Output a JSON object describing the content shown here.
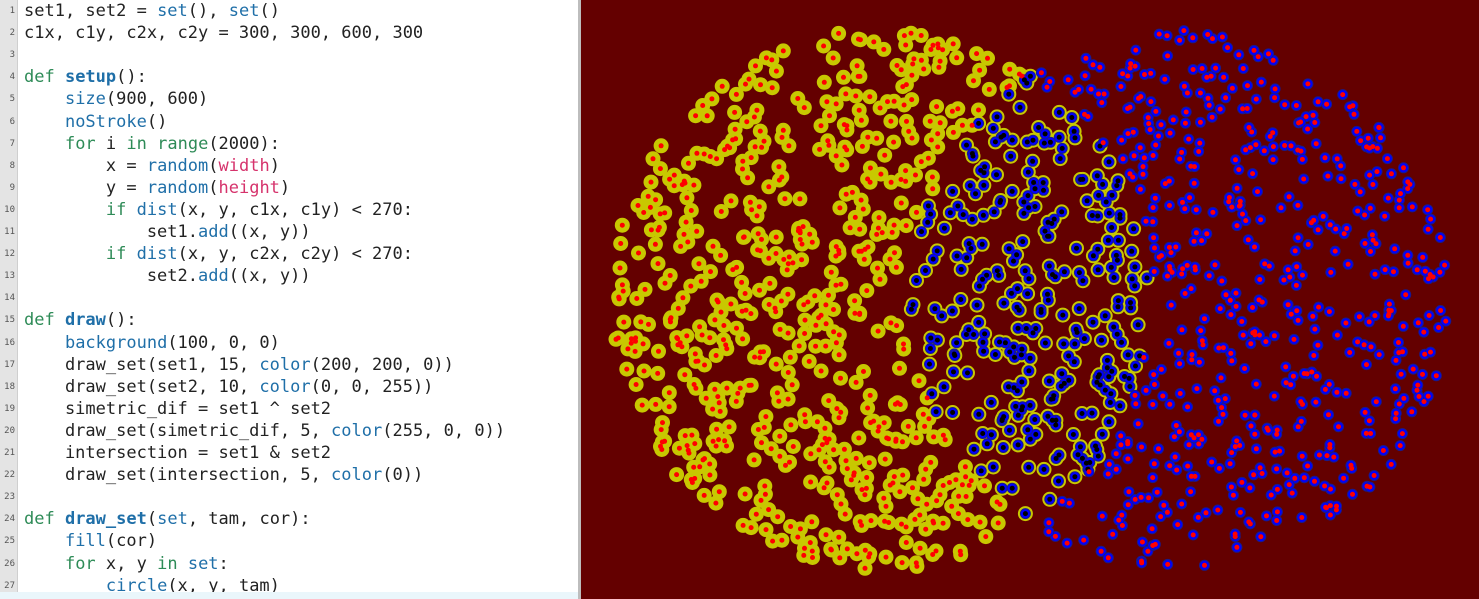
{
  "editor": {
    "lines": [
      {
        "num": "1",
        "tokens": [
          {
            "t": "set1, set2 = "
          },
          {
            "t": "set",
            "c": "fn"
          },
          {
            "t": "(), "
          },
          {
            "t": "set",
            "c": "fn"
          },
          {
            "t": "()"
          }
        ]
      },
      {
        "num": "2",
        "tokens": [
          {
            "t": "c1x, c1y, c2x, c2y = 300, 300, 600, 300"
          }
        ]
      },
      {
        "num": "3",
        "tokens": []
      },
      {
        "num": "4",
        "tokens": [
          {
            "t": "def ",
            "c": "kw"
          },
          {
            "t": "setup",
            "c": "def"
          },
          {
            "t": "():"
          }
        ]
      },
      {
        "num": "5",
        "tokens": [
          {
            "t": "    "
          },
          {
            "t": "size",
            "c": "fn"
          },
          {
            "t": "(900, 600)"
          }
        ]
      },
      {
        "num": "6",
        "tokens": [
          {
            "t": "    "
          },
          {
            "t": "noStroke",
            "c": "fn"
          },
          {
            "t": "()"
          }
        ]
      },
      {
        "num": "7",
        "tokens": [
          {
            "t": "    "
          },
          {
            "t": "for",
            "c": "kw"
          },
          {
            "t": " i "
          },
          {
            "t": "in",
            "c": "kw"
          },
          {
            "t": " "
          },
          {
            "t": "range",
            "c": "kw"
          },
          {
            "t": "(2000):"
          }
        ]
      },
      {
        "num": "8",
        "tokens": [
          {
            "t": "        x = "
          },
          {
            "t": "random",
            "c": "fn"
          },
          {
            "t": "("
          },
          {
            "t": "width",
            "c": "var"
          },
          {
            "t": ")"
          }
        ]
      },
      {
        "num": "9",
        "tokens": [
          {
            "t": "        y = "
          },
          {
            "t": "random",
            "c": "fn"
          },
          {
            "t": "("
          },
          {
            "t": "height",
            "c": "var"
          },
          {
            "t": ")"
          }
        ]
      },
      {
        "num": "10",
        "tokens": [
          {
            "t": "        "
          },
          {
            "t": "if",
            "c": "kw"
          },
          {
            "t": " "
          },
          {
            "t": "dist",
            "c": "fn"
          },
          {
            "t": "(x, y, c1x, c1y) < 270:"
          }
        ]
      },
      {
        "num": "11",
        "tokens": [
          {
            "t": "            set1."
          },
          {
            "t": "add",
            "c": "fn"
          },
          {
            "t": "((x, y))"
          }
        ]
      },
      {
        "num": "12",
        "tokens": [
          {
            "t": "        "
          },
          {
            "t": "if",
            "c": "kw"
          },
          {
            "t": " "
          },
          {
            "t": "dist",
            "c": "fn"
          },
          {
            "t": "(x, y, c2x, c2y) < 270:"
          }
        ]
      },
      {
        "num": "13",
        "tokens": [
          {
            "t": "            set2."
          },
          {
            "t": "add",
            "c": "fn"
          },
          {
            "t": "((x, y))"
          }
        ]
      },
      {
        "num": "14",
        "tokens": []
      },
      {
        "num": "15",
        "tokens": [
          {
            "t": "def ",
            "c": "kw"
          },
          {
            "t": "draw",
            "c": "def"
          },
          {
            "t": "():"
          }
        ]
      },
      {
        "num": "16",
        "tokens": [
          {
            "t": "    "
          },
          {
            "t": "background",
            "c": "fn"
          },
          {
            "t": "(100, 0, 0)"
          }
        ]
      },
      {
        "num": "17",
        "tokens": [
          {
            "t": "    draw_set(set1, 15, "
          },
          {
            "t": "color",
            "c": "fn"
          },
          {
            "t": "(200, 200, 0))"
          }
        ]
      },
      {
        "num": "18",
        "tokens": [
          {
            "t": "    draw_set(set2, 10, "
          },
          {
            "t": "color",
            "c": "fn"
          },
          {
            "t": "(0, 0, 255))"
          }
        ]
      },
      {
        "num": "19",
        "tokens": [
          {
            "t": "    simetric_dif = set1 ^ set2"
          }
        ]
      },
      {
        "num": "20",
        "tokens": [
          {
            "t": "    draw_set(simetric_dif, 5, "
          },
          {
            "t": "color",
            "c": "fn"
          },
          {
            "t": "(255, 0, 0))"
          }
        ]
      },
      {
        "num": "21",
        "tokens": [
          {
            "t": "    intersection = set1 & set2"
          }
        ]
      },
      {
        "num": "22",
        "tokens": [
          {
            "t": "    draw_set(intersection, 5, "
          },
          {
            "t": "color",
            "c": "fn"
          },
          {
            "t": "(0))"
          }
        ]
      },
      {
        "num": "23",
        "tokens": []
      },
      {
        "num": "24",
        "tokens": [
          {
            "t": "def ",
            "c": "kw"
          },
          {
            "t": "draw_set",
            "c": "def"
          },
          {
            "t": "("
          },
          {
            "t": "set",
            "c": "fn"
          },
          {
            "t": ", tam, cor):"
          }
        ]
      },
      {
        "num": "25",
        "tokens": [
          {
            "t": "    "
          },
          {
            "t": "fill",
            "c": "fn"
          },
          {
            "t": "(cor)"
          }
        ]
      },
      {
        "num": "26",
        "tokens": [
          {
            "t": "    "
          },
          {
            "t": "for",
            "c": "kw"
          },
          {
            "t": " x, y "
          },
          {
            "t": "in",
            "c": "kw"
          },
          {
            "t": " "
          },
          {
            "t": "set",
            "c": "fn"
          },
          {
            "t": ":"
          }
        ]
      },
      {
        "num": "27",
        "tokens": [
          {
            "t": "        "
          },
          {
            "t": "circle",
            "c": "fn"
          },
          {
            "t": "(x, y, tam)"
          }
        ]
      }
    ]
  },
  "sketch": {
    "background": "#640000",
    "set1_color": "#c8c800",
    "set2_color": "#0000ff",
    "symmetric_diff_color": "#ff0000",
    "intersection_color": "#000000",
    "set1_size": 15,
    "set2_size": 10,
    "marker_size": 5
  }
}
